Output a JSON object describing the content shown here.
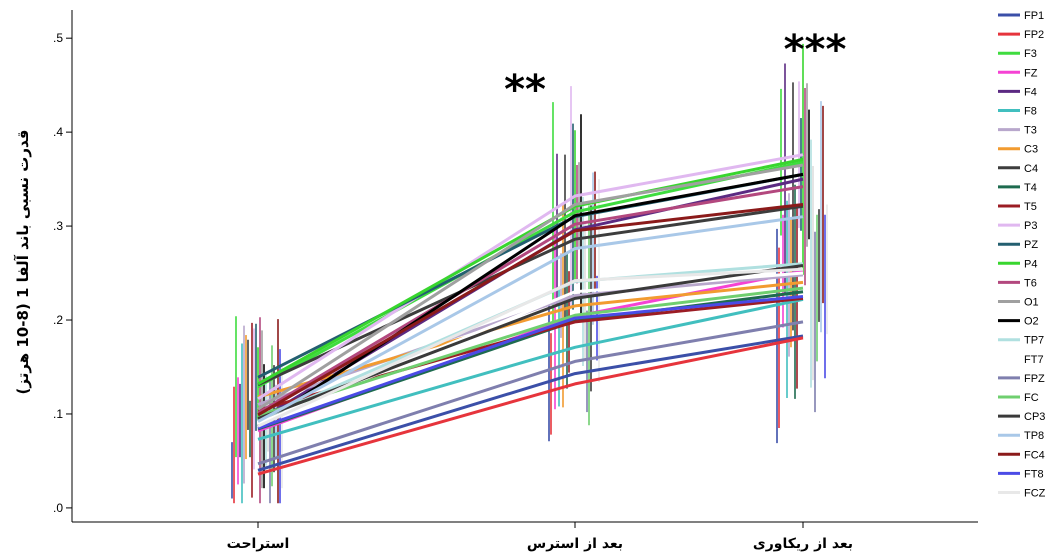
{
  "chart_data": {
    "type": "line",
    "ylabel": "قدرت نسبی باند آلفا 1 (8-10 هرتز)",
    "xlabel": "",
    "categories": [
      "استراحت",
      "بعد از استرس",
      "بعد از ریکاوری"
    ],
    "yticks": [
      ".0",
      ".1",
      ".2",
      ".3",
      ".4",
      ".5"
    ],
    "ylim": [
      -0.015,
      0.53
    ],
    "grid": false,
    "legend_position": "right",
    "annotations": [
      {
        "text": "**",
        "category_index": 1
      },
      {
        "text": "***",
        "category_index": 2
      }
    ],
    "series": [
      {
        "name": "FP1",
        "color": "#3b4fa8",
        "values": [
          0.04,
          0.143,
          0.183
        ]
      },
      {
        "name": "FP2",
        "color": "#e6343c",
        "values": [
          0.036,
          0.132,
          0.181
        ]
      },
      {
        "name": "F3",
        "color": "#3fdc3f",
        "values": [
          0.129,
          0.315,
          0.368
        ]
      },
      {
        "name": "FZ",
        "color": "#f542d4",
        "values": [
          0.082,
          0.204,
          0.252
        ]
      },
      {
        "name": "F4",
        "color": "#5b2a82",
        "values": [
          0.093,
          0.296,
          0.35
        ]
      },
      {
        "name": "F8",
        "color": "#41bfbf",
        "values": [
          0.073,
          0.171,
          0.222
        ]
      },
      {
        "name": "T3",
        "color": "#b8a7cc",
        "values": [
          0.11,
          0.226,
          0.248
        ]
      },
      {
        "name": "C3",
        "color": "#f29b30",
        "values": [
          0.118,
          0.215,
          0.24
        ]
      },
      {
        "name": "C4",
        "color": "#3d3d3d",
        "values": [
          0.131,
          0.286,
          0.321
        ]
      },
      {
        "name": "T4",
        "color": "#1e6b4f",
        "values": [
          0.084,
          0.199,
          0.23
        ]
      },
      {
        "name": "T5",
        "color": "#9b1c24",
        "values": [
          0.104,
          0.198,
          0.223
        ]
      },
      {
        "name": "P3",
        "color": "#e0b8f0",
        "values": [
          0.116,
          0.332,
          0.376
        ]
      },
      {
        "name": "PZ",
        "color": "#235f70",
        "values": [
          0.139,
          0.31,
          0.355
        ]
      },
      {
        "name": "P4",
        "color": "#38d62e",
        "values": [
          0.132,
          0.321,
          0.371
        ]
      },
      {
        "name": "T6",
        "color": "#b3487e",
        "values": [
          0.101,
          0.302,
          0.342
        ]
      },
      {
        "name": "O1",
        "color": "#a0a0a0",
        "values": [
          0.105,
          0.323,
          0.365
        ]
      },
      {
        "name": "O2",
        "color": "#000000",
        "values": [
          0.087,
          0.311,
          0.355
        ]
      },
      {
        "name": "TP7",
        "color": "#b0e0e0",
        "values": [
          0.093,
          0.241,
          0.26
        ]
      },
      {
        "name": "FT7",
        "color": "#ffffff",
        "values": [
          0.09,
          0.23,
          0.25
        ]
      },
      {
        "name": "FPZ",
        "color": "#7f7fae",
        "values": [
          0.047,
          0.156,
          0.198
        ]
      },
      {
        "name": "FC",
        "color": "#6fcf6f",
        "values": [
          0.098,
          0.205,
          0.234
        ]
      },
      {
        "name": "CP3",
        "color": "#3a3a3a",
        "values": [
          0.095,
          0.223,
          0.258
        ]
      },
      {
        "name": "TP8",
        "color": "#a9c8e8",
        "values": [
          0.092,
          0.276,
          0.31
        ]
      },
      {
        "name": "FC4",
        "color": "#8b1a1a",
        "values": [
          0.099,
          0.295,
          0.323
        ]
      },
      {
        "name": "FT8",
        "color": "#4b4be6",
        "values": [
          0.085,
          0.202,
          0.225
        ]
      },
      {
        "name": "FCZ",
        "color": "#e8e8e8",
        "values": [
          0.087,
          0.242,
          0.254
        ]
      }
    ]
  }
}
